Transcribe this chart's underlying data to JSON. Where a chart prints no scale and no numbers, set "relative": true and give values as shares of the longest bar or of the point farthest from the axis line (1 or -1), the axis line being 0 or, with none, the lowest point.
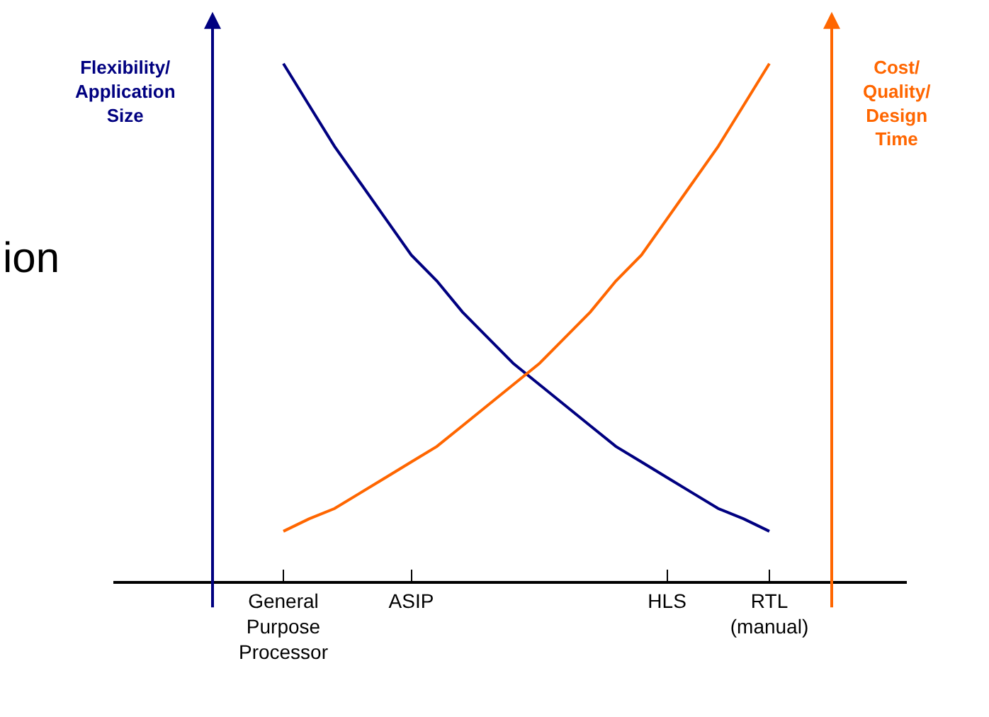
{
  "chart_data": {
    "type": "line",
    "relative": true,
    "categories": [
      "General Purpose Processor",
      null,
      null,
      null,
      null,
      "ASIP",
      null,
      null,
      null,
      null,
      null,
      null,
      null,
      null,
      null,
      "HLS",
      null,
      null,
      null,
      "RTL (manual)"
    ],
    "ylabel": "Flexibility/ Application Size",
    "y2label": "Cost/ Quality/ Design Time",
    "annotations": [
      "ion"
    ],
    "line_style": "solid",
    "series": [
      {
        "color": "#000080",
        "values": [
          1,
          0.92,
          0.84,
          0.77,
          0.7,
          0.63,
          0.58,
          0.52,
          0.47,
          0.42,
          0.38,
          0.34,
          0.3,
          0.26,
          0.23,
          0.2,
          0.17,
          0.14,
          0.12,
          0.096
        ]
      },
      {
        "color": "#ff6600",
        "values": [
          0.096,
          0.12,
          0.14,
          0.17,
          0.2,
          0.23,
          0.26,
          0.3,
          0.34,
          0.38,
          0.42,
          0.47,
          0.52,
          0.58,
          0.63,
          0.7,
          0.77,
          0.84,
          0.92,
          1
        ]
      }
    ]
  }
}
